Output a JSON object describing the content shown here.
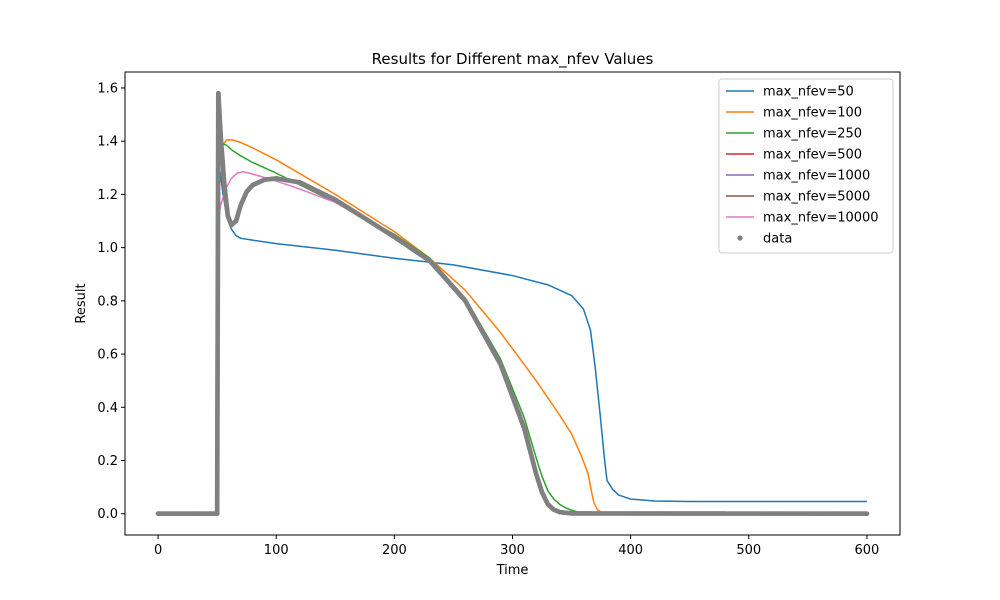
{
  "chart_data": {
    "type": "line",
    "title": "Results for Different max_nfev Values",
    "xlabel": "Time",
    "ylabel": "Result",
    "xlim": [
      -28,
      628
    ],
    "ylim": [
      -0.08,
      1.66
    ],
    "xticks": [
      0,
      100,
      200,
      300,
      400,
      500,
      600
    ],
    "yticks": [
      0.0,
      0.2,
      0.4,
      0.6,
      0.8,
      1.0,
      1.2,
      1.4,
      1.6
    ],
    "xtick_labels": [
      "0",
      "100",
      "200",
      "300",
      "400",
      "500",
      "600"
    ],
    "ytick_labels": [
      "0.0",
      "0.2",
      "0.4",
      "0.6",
      "0.8",
      "1.0",
      "1.2",
      "1.4",
      "1.6"
    ],
    "grid": false,
    "legend_position": "top-right",
    "series": [
      {
        "name": "max_nfev=50",
        "color": "#1f77b4",
        "kind": "line",
        "x": [
          0,
          50,
          50.5,
          52,
          55,
          58,
          62,
          66,
          70,
          80,
          100,
          150,
          200,
          250,
          300,
          330,
          350,
          360,
          366,
          370,
          374,
          378,
          380,
          385,
          390,
          400,
          420,
          450,
          500,
          600
        ],
        "y": [
          0,
          0,
          1.38,
          1.3,
          1.2,
          1.12,
          1.07,
          1.045,
          1.035,
          1.028,
          1.015,
          0.99,
          0.96,
          0.935,
          0.895,
          0.86,
          0.82,
          0.77,
          0.69,
          0.55,
          0.38,
          0.2,
          0.125,
          0.09,
          0.07,
          0.055,
          0.048,
          0.046,
          0.046,
          0.046
        ]
      },
      {
        "name": "max_nfev=100",
        "color": "#ff7f0e",
        "kind": "line",
        "x": [
          0,
          50,
          50.5,
          54,
          58,
          63,
          70,
          80,
          100,
          150,
          200,
          230,
          260,
          290,
          320,
          340,
          350,
          358,
          364,
          367,
          369,
          372,
          376,
          385,
          400,
          600
        ],
        "y": [
          0,
          0,
          1.3,
          1.38,
          1.405,
          1.405,
          1.395,
          1.375,
          1.33,
          1.2,
          1.06,
          0.96,
          0.84,
          0.68,
          0.5,
          0.37,
          0.3,
          0.22,
          0.15,
          0.08,
          0.04,
          0.015,
          0.004,
          0.001,
          0,
          0
        ]
      },
      {
        "name": "max_nfev=250",
        "color": "#2ca02c",
        "kind": "line",
        "x": [
          0,
          50,
          50.5,
          54,
          58,
          63,
          70,
          80,
          100,
          150,
          200,
          230,
          260,
          290,
          310,
          320,
          325,
          330,
          335,
          340,
          345,
          350,
          355,
          360,
          370,
          600
        ],
        "y": [
          0,
          0,
          1.32,
          1.39,
          1.385,
          1.365,
          1.345,
          1.32,
          1.28,
          1.17,
          1.05,
          0.96,
          0.81,
          0.58,
          0.36,
          0.21,
          0.14,
          0.085,
          0.055,
          0.035,
          0.022,
          0.013,
          0.007,
          0.003,
          0.001,
          0
        ]
      },
      {
        "name": "max_nfev=500",
        "color": "#d62728",
        "kind": "line",
        "x": [
          0,
          50,
          51,
          53,
          56,
          59,
          62,
          66,
          70,
          75,
          80,
          90,
          100,
          120,
          150,
          200,
          230,
          260,
          290,
          310,
          320,
          325,
          330,
          335,
          340,
          350,
          600
        ],
        "y": [
          0,
          0,
          1.58,
          1.42,
          1.24,
          1.12,
          1.085,
          1.1,
          1.16,
          1.21,
          1.235,
          1.255,
          1.26,
          1.245,
          1.18,
          1.04,
          0.95,
          0.8,
          0.56,
          0.32,
          0.15,
          0.08,
          0.035,
          0.015,
          0.006,
          0.001,
          0
        ]
      },
      {
        "name": "max_nfev=1000",
        "color": "#9467bd",
        "kind": "line",
        "x": [
          0,
          50,
          51,
          53,
          56,
          59,
          62,
          66,
          70,
          75,
          80,
          90,
          100,
          120,
          150,
          200,
          230,
          260,
          290,
          310,
          320,
          325,
          330,
          335,
          340,
          350,
          600
        ],
        "y": [
          0,
          0,
          1.58,
          1.42,
          1.24,
          1.12,
          1.085,
          1.1,
          1.16,
          1.21,
          1.235,
          1.255,
          1.26,
          1.245,
          1.18,
          1.04,
          0.95,
          0.8,
          0.56,
          0.32,
          0.15,
          0.08,
          0.035,
          0.015,
          0.006,
          0.001,
          0
        ]
      },
      {
        "name": "max_nfev=5000",
        "color": "#8c564b",
        "kind": "line",
        "x": [
          0,
          50,
          51,
          53,
          56,
          59,
          62,
          66,
          70,
          75,
          80,
          90,
          100,
          120,
          150,
          200,
          230,
          260,
          290,
          310,
          320,
          325,
          330,
          335,
          340,
          350,
          600
        ],
        "y": [
          0,
          0,
          1.58,
          1.42,
          1.24,
          1.12,
          1.085,
          1.1,
          1.16,
          1.21,
          1.235,
          1.255,
          1.26,
          1.245,
          1.18,
          1.04,
          0.95,
          0.8,
          0.56,
          0.32,
          0.15,
          0.08,
          0.035,
          0.015,
          0.006,
          0.001,
          0
        ]
      },
      {
        "name": "max_nfev=10000",
        "color": "#e377c2",
        "kind": "line",
        "x": [
          0,
          50,
          50.5,
          53,
          57,
          62,
          67,
          72,
          77,
          85,
          100,
          120,
          150,
          200,
          230,
          260,
          290,
          310,
          320,
          325,
          330,
          335,
          340,
          350,
          600
        ],
        "y": [
          0,
          0,
          1.08,
          1.16,
          1.22,
          1.26,
          1.28,
          1.285,
          1.28,
          1.27,
          1.25,
          1.22,
          1.17,
          1.04,
          0.95,
          0.8,
          0.56,
          0.32,
          0.15,
          0.08,
          0.035,
          0.015,
          0.006,
          0.001,
          0
        ]
      },
      {
        "name": "data",
        "color": "#808080",
        "kind": "scatter",
        "x": [
          0,
          50,
          51,
          53,
          56,
          59,
          62,
          66,
          70,
          75,
          80,
          90,
          100,
          120,
          150,
          200,
          230,
          260,
          290,
          310,
          320,
          325,
          330,
          335,
          340,
          350,
          600
        ],
        "y": [
          0,
          0,
          1.58,
          1.42,
          1.24,
          1.12,
          1.085,
          1.1,
          1.16,
          1.21,
          1.235,
          1.255,
          1.26,
          1.245,
          1.18,
          1.04,
          0.95,
          0.8,
          0.56,
          0.32,
          0.15,
          0.08,
          0.035,
          0.015,
          0.006,
          0.001,
          0
        ]
      }
    ]
  }
}
